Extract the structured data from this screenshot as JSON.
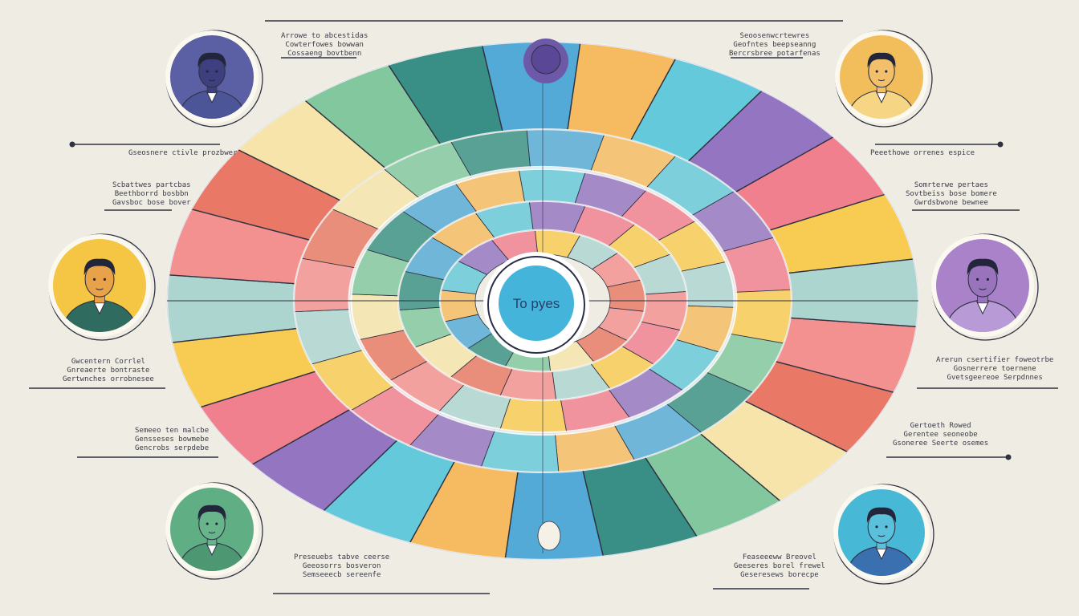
{
  "center": {
    "label": "To pyes",
    "color": "#45b4db"
  },
  "palette": [
    "#f28c8c",
    "#4aa7d6",
    "#f8c94a",
    "#7bc59a",
    "#8e6fbf",
    "#e8735f",
    "#f5b85a",
    "#a8d4cf",
    "#2e8a7f",
    "#f07a8a",
    "#f6e4a8",
    "#5cc7d9"
  ],
  "avatars": [
    {
      "id": "tl",
      "ring": "#5b5fa3",
      "shirt": "#4b5598",
      "skin": "#3d3f7f"
    },
    {
      "id": "tr",
      "ring": "#f2be5c",
      "shirt": "#f6d584",
      "skin": "#f2c06a"
    },
    {
      "id": "ml",
      "ring": "#f4c643",
      "shirt": "#2f6b5e",
      "skin": "#e7a24a"
    },
    {
      "id": "mr",
      "ring": "#a982c9",
      "shirt": "#b89ad6",
      "skin": "#9a73bd"
    },
    {
      "id": "bl",
      "ring": "#5fae84",
      "shirt": "#4d9873",
      "skin": "#69b58b"
    },
    {
      "id": "br",
      "ring": "#47b8d6",
      "shirt": "#3a6fb0",
      "skin": "#5bc0dc"
    }
  ],
  "labels": {
    "tl_small": [
      "Arrowe to abcestidas",
      "Cowterfowes bowwan",
      "Cossaeng bovtbenn"
    ],
    "tl_main": "Gseosnere ctivle prozbwer",
    "tl_mid": [
      "Scbattwes partcbas",
      "Beethborrd bosbbn",
      "Gavsboc bose bover"
    ],
    "ml_low": [
      "Gwcentern Corrlel",
      "Gnreaerte bontraste",
      "Gertwnches orrobnesee"
    ],
    "bl_mid": [
      "Semeeo ten malcbe",
      "Gensseses bowmebe",
      "Gencrobs serpdebe"
    ],
    "bl_bottom": [
      "Preseuebs tabve ceerse",
      "Geeosorrs bosveron",
      "Semseeecb sereenfe"
    ],
    "tr_small": [
      "Seoosenwcrtewres",
      "Geofntes beepseanng",
      "Bercrsbree potarfenas"
    ],
    "tr_main": "Peeethowe orrenes espice",
    "tr_mid": [
      "Somrterwe pertaes",
      "Sovtbeiss bose bomere",
      "Gwrdsbwone bewnee"
    ],
    "mr_low": [
      "Arerun csertifier foweotrbe",
      "Gosnerrere toernene",
      "Gvetsgeereoe Serpdnnes"
    ],
    "br_mid": [
      "Gertoeth Rowed",
      "Gerentee seoneobe",
      "Gsoneree Seerte osemes"
    ],
    "br_bottom": [
      "Feaseeeww Breovel",
      "Geeseres borel frewel",
      "Geseresews borecpe"
    ]
  }
}
